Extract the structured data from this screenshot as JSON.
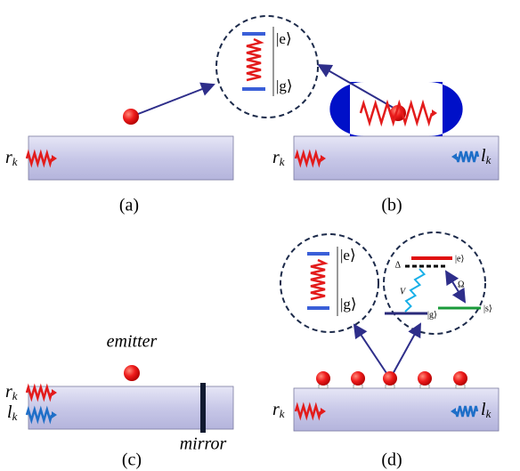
{
  "panel_labels": {
    "a": "(a)",
    "b": "(b)",
    "c": "(c)",
    "d": "(d)"
  },
  "states": {
    "e": "|e⟩",
    "g": "|g⟩",
    "s": "|s⟩"
  },
  "modes": {
    "right": "r",
    "left": "l",
    "sub": "k"
  },
  "emitter": "emitter",
  "mirror": "mirror",
  "symbols": {
    "detuning": "Δ",
    "rabi": "Ω",
    "coupling": "V"
  }
}
